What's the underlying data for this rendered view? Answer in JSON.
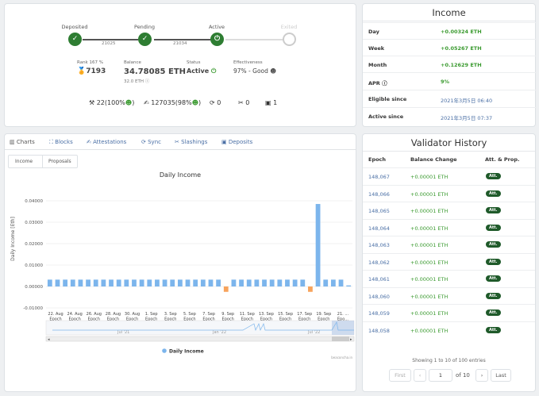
{
  "status": {
    "steps": [
      {
        "label": "Deposited",
        "icon": "check-icon"
      },
      {
        "label": "Pending",
        "icon": "check-icon"
      },
      {
        "label": "Active",
        "icon": "power-icon"
      },
      {
        "label": "Exited",
        "icon": "empty-circle-icon"
      }
    ],
    "epoch_1": "21025",
    "epoch_2": "21034",
    "rank_label": "Rank 167 %",
    "rank_value": "7193",
    "balance_label": "Balance",
    "balance_value": "34.78085 ETH",
    "balance_sub": "32.0 ETH",
    "status_label": "Status",
    "status_value": "Active",
    "effectiveness_label": "Effectiveness",
    "effectiveness_value": "97% - Good",
    "stats": [
      {
        "icon": "blocks-icon",
        "value": "22(100%"
      },
      {
        "icon": "attestations-icon",
        "value": "127035(98%"
      },
      {
        "icon": "sync-icon",
        "value": "0"
      },
      {
        "icon": "slashings-icon",
        "value": "0"
      },
      {
        "icon": "deposits-icon",
        "value": "1"
      }
    ]
  },
  "income": {
    "title": "Income",
    "rows": [
      {
        "key": "Day",
        "value": "+0.00324 ETH"
      },
      {
        "key": "Week",
        "value": "+0.05267 ETH"
      },
      {
        "key": "Month",
        "value": "+0.12629 ETH"
      },
      {
        "key": "APR",
        "value": "9%"
      },
      {
        "key": "Eligible since",
        "value": "2021年3月5日 06:40"
      },
      {
        "key": "Active since",
        "value": "2021年3月5日 07:37"
      }
    ]
  },
  "tabs": [
    {
      "label": "Charts",
      "icon": "chart-icon"
    },
    {
      "label": "Blocks",
      "icon": "cubes-icon"
    },
    {
      "label": "Attestations",
      "icon": "attestations-icon"
    },
    {
      "label": "Sync",
      "icon": "sync-icon"
    },
    {
      "label": "Slashings",
      "icon": "slashings-icon"
    },
    {
      "label": "Deposits",
      "icon": "deposits-icon"
    }
  ],
  "subtabs": [
    "Income",
    "Proposals"
  ],
  "navigator_labels": [
    "Jul '21",
    "Jan '22",
    "Jul '22"
  ],
  "credit": "beaconcha.in",
  "chart_data": {
    "type": "bar",
    "title": "Daily Income",
    "ylabel": "Daily Income [Eth]",
    "ylim": [
      -0.01,
      0.04
    ],
    "yticks": [
      "0.04000",
      "0.03000",
      "0.02000",
      "0.01000",
      "0.00000",
      "-0.01000"
    ],
    "xtick_labels": [
      [
        "22. Aug",
        "Epoch",
        "141337"
      ],
      [
        "24. Aug",
        "Epoch",
        "141787"
      ],
      [
        "26. Aug",
        "Epoch",
        "142237"
      ],
      [
        "28. Aug",
        "Epoch",
        "142687"
      ],
      [
        "30. Aug",
        "Epoch",
        "143137"
      ],
      [
        "1. Sep",
        "Epoch",
        "143587"
      ],
      [
        "3. Sep",
        "Epoch",
        "144037"
      ],
      [
        "5. Sep",
        "Epoch",
        "144487"
      ],
      [
        "7. Sep",
        "Epoch",
        "144937"
      ],
      [
        "9. Sep",
        "Epoch",
        "145387"
      ],
      [
        "11. Sep",
        "Epoch",
        "145837"
      ],
      [
        "13. Sep",
        "Epoch",
        "146287"
      ],
      [
        "15. Sep",
        "Epoch",
        "146737"
      ],
      [
        "17. Sep",
        "Epoch",
        "147187"
      ],
      [
        "19. Sep",
        "Epoch",
        "147637"
      ],
      [
        "21. ...",
        "Epo...",
        ""
      ]
    ],
    "values": [
      0.0032,
      0.0032,
      0.0032,
      0.0032,
      0.0032,
      0.0032,
      0.0032,
      0.0032,
      0.0032,
      0.0032,
      0.0032,
      0.0032,
      0.0032,
      0.0032,
      0.0032,
      0.0032,
      0.0032,
      0.0032,
      0.0032,
      0.0032,
      0.0032,
      0.0032,
      0.0032,
      -0.0025,
      0.0032,
      0.0032,
      0.0032,
      0.0032,
      0.0032,
      0.0032,
      0.0032,
      0.0032,
      0.0032,
      0.0032,
      -0.0025,
      0.0385,
      0.0032,
      0.0032,
      0.0032,
      0.0005
    ],
    "series": [
      {
        "name": "Daily Income",
        "color": "#7cb5ec"
      }
    ],
    "negative_color": "#f7a35c",
    "legend": "bottom-center",
    "grid": true
  },
  "history": {
    "title": "Validator History",
    "headers": [
      "Epoch",
      "Balance Change",
      "Att. & Prop."
    ],
    "rows": [
      {
        "epoch": "148,067",
        "change": "+0.00001 ETH",
        "badge": "Att."
      },
      {
        "epoch": "148,066",
        "change": "+0.00001 ETH",
        "badge": "Att."
      },
      {
        "epoch": "148,065",
        "change": "+0.00001 ETH",
        "badge": "Att."
      },
      {
        "epoch": "148,064",
        "change": "+0.00001 ETH",
        "badge": "Att."
      },
      {
        "epoch": "148,063",
        "change": "+0.00001 ETH",
        "badge": "Att."
      },
      {
        "epoch": "148,062",
        "change": "+0.00001 ETH",
        "badge": "Att."
      },
      {
        "epoch": "148,061",
        "change": "+0.00001 ETH",
        "badge": "Att."
      },
      {
        "epoch": "148,060",
        "change": "+0.00001 ETH",
        "badge": "Att."
      },
      {
        "epoch": "148,059",
        "change": "+0.00001 ETH",
        "badge": "Att."
      },
      {
        "epoch": "148,058",
        "change": "+0.00001 ETH",
        "badge": "Att."
      }
    ],
    "summary": "Showing 1 to 10 of 100 entries",
    "pager": {
      "first": "First",
      "prev": "‹",
      "page": "1",
      "of": "of 10",
      "next": "›",
      "last": "Last"
    }
  }
}
